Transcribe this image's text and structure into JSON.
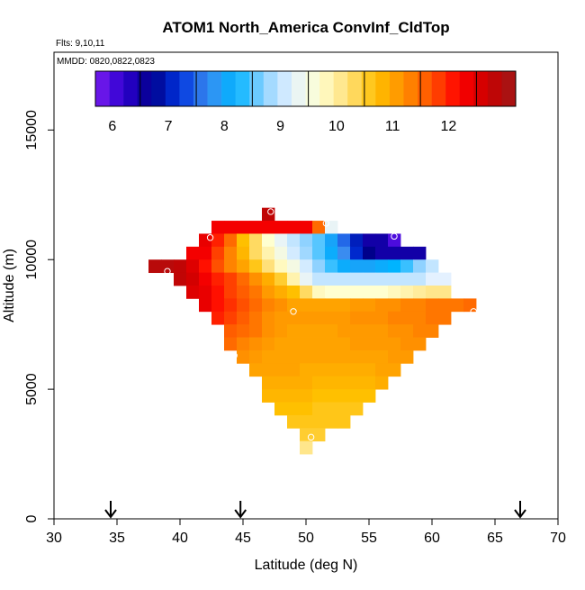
{
  "chart_data": {
    "type": "heatmap",
    "title": "ATOM1 North_America ConvInf_CldTop",
    "flights_label": "Flts: 9,10,11",
    "dates_label": "MMDD: 0820,0822,0823",
    "xlabel": "Latitude (deg N)",
    "ylabel": "Altitude (m)",
    "xlim": [
      30,
      70
    ],
    "ylim": [
      0,
      18000
    ],
    "xticks": [
      30,
      35,
      40,
      45,
      50,
      55,
      60,
      65,
      70
    ],
    "yticks": [
      0,
      5000,
      10000,
      15000
    ],
    "cell_width_deg": 1,
    "cell_height_m": 500,
    "colorbar": {
      "vmin": 5.2,
      "vmax": 12.7,
      "ticks": [
        6,
        7,
        8,
        9,
        10,
        11,
        12
      ],
      "stops": [
        "#7b1df0",
        "#2d00d0",
        "#00008b",
        "#0033dd",
        "#3a8cf0",
        "#00b4ff",
        "#8fd2ff",
        "#e4f1ff",
        "#ffffd0",
        "#ffe07a",
        "#ffc000",
        "#ff9000",
        "#ff5000",
        "#ff0000",
        "#c80000",
        "#a01818"
      ]
    },
    "flight_markers_lat": [
      34.5,
      44.8,
      67.0
    ],
    "cells": [
      {
        "alt": 11750,
        "lats": [
          47
        ],
        "values": [
          12.3
        ]
      },
      {
        "alt": 11250,
        "lats": [
          43,
          44,
          45,
          46,
          47,
          48,
          49,
          50,
          51,
          52
        ],
        "values": [
          11.8,
          11.8,
          11.8,
          11.8,
          11.8,
          11.8,
          11.8,
          11.8,
          11.0,
          8.8
        ]
      },
      {
        "alt": 10750,
        "lats": [
          42,
          43,
          44,
          45,
          46,
          47,
          48,
          49,
          50,
          51,
          52,
          53,
          54,
          55,
          56,
          57
        ],
        "values": [
          11.9,
          11.5,
          11.0,
          10.2,
          9.8,
          9.2,
          8.8,
          8.5,
          8.2,
          8.0,
          7.5,
          7.0,
          6.5,
          6.0,
          6.0,
          5.5
        ]
      },
      {
        "alt": 10250,
        "lats": [
          41,
          42,
          43,
          44,
          45,
          46,
          47,
          48,
          49,
          50,
          51,
          52,
          53,
          54,
          55,
          56,
          57,
          58,
          59
        ],
        "values": [
          11.8,
          11.8,
          11.3,
          10.8,
          10.3,
          9.8,
          9.4,
          9.0,
          8.6,
          8.3,
          8.0,
          7.6,
          7.2,
          6.6,
          6.2,
          6.0,
          6.0,
          6.0,
          6.0
        ]
      },
      {
        "alt": 9750,
        "lats": [
          38,
          39,
          40,
          41,
          42,
          43,
          44,
          45,
          46,
          47,
          48,
          49,
          50,
          51,
          52,
          53,
          54,
          55,
          56,
          57,
          58,
          59,
          60
        ],
        "values": [
          12.4,
          12.4,
          12.3,
          12.0,
          11.6,
          11.2,
          10.8,
          10.5,
          10.1,
          9.7,
          9.3,
          9.0,
          8.6,
          8.2,
          7.9,
          7.6,
          7.5,
          7.5,
          7.6,
          7.7,
          7.9,
          8.2,
          8.5
        ]
      },
      {
        "alt": 9250,
        "lats": [
          40,
          41,
          42,
          43,
          44,
          45,
          46,
          47,
          48,
          49,
          50,
          51,
          52,
          53,
          54,
          55,
          56,
          57,
          58,
          59,
          60,
          61
        ],
        "values": [
          12.3,
          12.1,
          11.8,
          11.5,
          11.3,
          11.0,
          10.7,
          10.4,
          10.0,
          9.4,
          8.8,
          8.5,
          8.5,
          8.5,
          8.5,
          8.5,
          8.5,
          8.5,
          8.5,
          8.5,
          8.7,
          8.7
        ]
      },
      {
        "alt": 8750,
        "lats": [
          41,
          42,
          43,
          44,
          45,
          46,
          47,
          48,
          49,
          50,
          51,
          52,
          53,
          54,
          55,
          56,
          57,
          58,
          59,
          60,
          61
        ],
        "values": [
          12.0,
          11.9,
          11.6,
          11.3,
          11.1,
          10.9,
          10.6,
          10.4,
          10.2,
          9.8,
          9.3,
          9.2,
          9.2,
          9.2,
          9.2,
          9.2,
          9.3,
          9.4,
          9.5,
          9.6,
          9.6
        ]
      },
      {
        "alt": 8250,
        "lats": [
          42,
          43,
          44,
          45,
          46,
          47,
          48,
          49,
          50,
          51,
          52,
          53,
          54,
          55,
          56,
          57,
          58,
          59,
          60,
          61,
          62,
          63
        ],
        "values": [
          11.9,
          11.6,
          11.4,
          11.2,
          11.0,
          10.8,
          10.7,
          10.5,
          10.5,
          10.5,
          10.5,
          10.5,
          10.6,
          10.6,
          10.7,
          10.7,
          10.8,
          10.8,
          10.9,
          10.9,
          10.9,
          11.0
        ]
      },
      {
        "alt": 7750,
        "lats": [
          43,
          44,
          45,
          46,
          47,
          48,
          49,
          50,
          51,
          52,
          53,
          54,
          55,
          56,
          57,
          58,
          59,
          60,
          61
        ],
        "values": [
          11.5,
          11.3,
          11.1,
          10.9,
          10.7,
          10.6,
          10.6,
          10.6,
          10.6,
          10.6,
          10.6,
          10.7,
          10.7,
          10.7,
          10.8,
          10.8,
          10.8,
          10.9,
          10.9
        ]
      },
      {
        "alt": 7250,
        "lats": [
          44,
          45,
          46,
          47,
          48,
          49,
          50,
          51,
          52,
          53,
          54,
          55,
          56,
          57,
          58,
          59,
          60
        ],
        "values": [
          11.1,
          11.0,
          10.9,
          10.7,
          10.6,
          10.5,
          10.5,
          10.5,
          10.5,
          10.6,
          10.6,
          10.6,
          10.6,
          10.7,
          10.7,
          10.8,
          10.8
        ]
      },
      {
        "alt": 6750,
        "lats": [
          44,
          45,
          46,
          47,
          48,
          49,
          50,
          51,
          52,
          53,
          54,
          55,
          56,
          57,
          58,
          59
        ],
        "values": [
          11.0,
          10.8,
          10.7,
          10.6,
          10.5,
          10.5,
          10.5,
          10.5,
          10.5,
          10.5,
          10.6,
          10.6,
          10.6,
          10.6,
          10.7,
          10.7
        ]
      },
      {
        "alt": 6250,
        "lats": [
          45,
          46,
          47,
          48,
          49,
          50,
          51,
          52,
          53,
          54,
          55,
          56,
          57,
          58
        ],
        "values": [
          10.7,
          10.6,
          10.5,
          10.5,
          10.5,
          10.5,
          10.5,
          10.5,
          10.5,
          10.5,
          10.5,
          10.5,
          10.6,
          10.6
        ]
      },
      {
        "alt": 5750,
        "lats": [
          46,
          47,
          48,
          49,
          50,
          51,
          52,
          53,
          54,
          55,
          56,
          57
        ],
        "values": [
          10.5,
          10.5,
          10.5,
          10.5,
          10.4,
          10.4,
          10.4,
          10.4,
          10.4,
          10.4,
          10.5,
          10.5
        ]
      },
      {
        "alt": 5250,
        "lats": [
          47,
          48,
          49,
          50,
          51,
          52,
          53,
          54,
          55,
          56
        ],
        "values": [
          10.4,
          10.4,
          10.4,
          10.4,
          10.3,
          10.3,
          10.3,
          10.3,
          10.3,
          10.4
        ]
      },
      {
        "alt": 4750,
        "lats": [
          47,
          48,
          49,
          50,
          51,
          52,
          53,
          54,
          55
        ],
        "values": [
          10.3,
          10.3,
          10.3,
          10.3,
          10.2,
          10.2,
          10.2,
          10.2,
          10.2
        ]
      },
      {
        "alt": 4250,
        "lats": [
          48,
          49,
          50,
          51,
          52,
          53,
          54
        ],
        "values": [
          10.2,
          10.2,
          10.2,
          10.1,
          10.1,
          10.1,
          10.1
        ]
      },
      {
        "alt": 3750,
        "lats": [
          49,
          50,
          51,
          52,
          53
        ],
        "values": [
          10.1,
          10.1,
          10.1,
          10.1,
          10.1
        ]
      },
      {
        "alt": 3250,
        "lats": [
          50,
          51
        ],
        "values": [
          10.0,
          10.0
        ]
      },
      {
        "alt": 2750,
        "lats": [
          50
        ],
        "values": [
          9.6
        ]
      }
    ],
    "points": [
      {
        "lat": 47.2,
        "alt": 11850
      },
      {
        "lat": 51.6,
        "alt": 11400
      },
      {
        "lat": 42.4,
        "alt": 10850
      },
      {
        "lat": 57.0,
        "alt": 10900
      },
      {
        "lat": 39.0,
        "alt": 9550
      },
      {
        "lat": 49.0,
        "alt": 8000
      },
      {
        "lat": 63.3,
        "alt": 8000
      },
      {
        "lat": 44.3,
        "alt": 6300
      },
      {
        "lat": 50.4,
        "alt": 3150
      }
    ]
  }
}
